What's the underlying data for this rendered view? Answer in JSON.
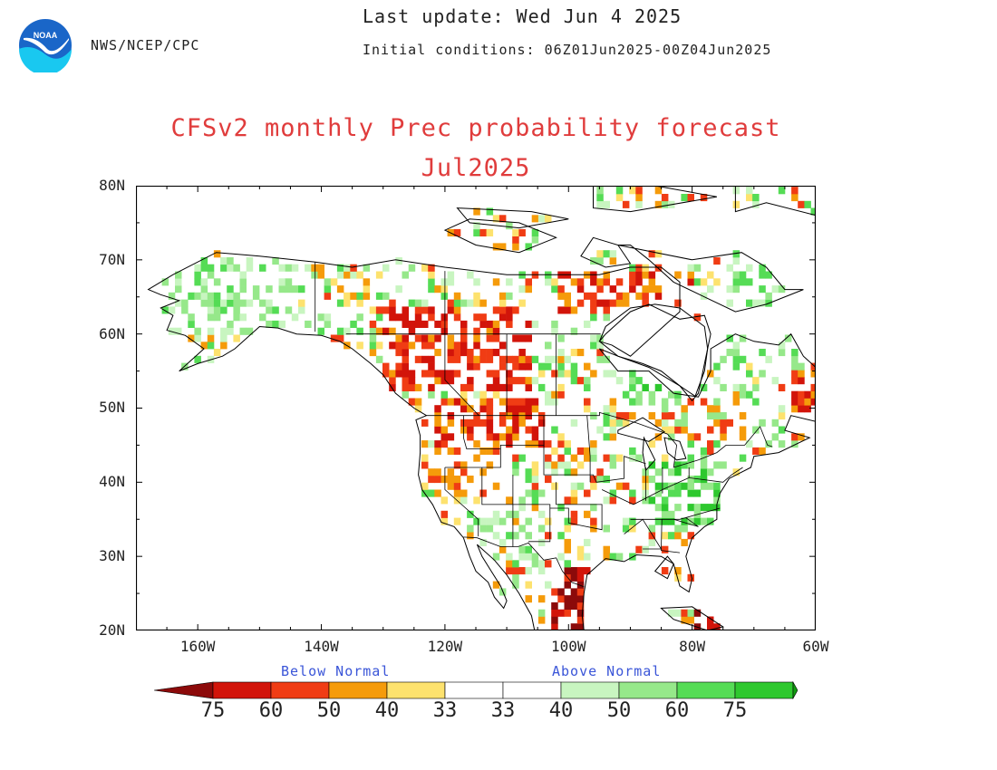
{
  "header": {
    "org": "NWS/NCEP/CPC",
    "last_update": "Last update: Wed Jun 4 2025",
    "initial_conditions": "Initial conditions: 06Z01Jun2025-00Z04Jun2025",
    "logo_text": "NOAA"
  },
  "title": {
    "line1": "CFSv2 monthly Prec probability forecast",
    "line2": "Jul2025"
  },
  "map": {
    "lat_labels": [
      "80N",
      "70N",
      "60N",
      "50N",
      "40N",
      "30N",
      "20N"
    ],
    "lon_labels": [
      "160W",
      "140W",
      "120W",
      "100W",
      "80W",
      "60W"
    ]
  },
  "legend": {
    "below_label": "Below Normal",
    "above_label": "Above Normal",
    "ticks": [
      "75",
      "60",
      "50",
      "40",
      "33",
      "33",
      "40",
      "50",
      "60",
      "75"
    ],
    "colors": {
      "below": [
        "#8c0a0a",
        "#d2140a",
        "#f03c14",
        "#f59b0a",
        "#fde26e"
      ],
      "neutral": "#ffffff",
      "above": [
        "#c8f5c0",
        "#96e88a",
        "#55dc55",
        "#2ec82e",
        "#109a10"
      ]
    }
  }
}
